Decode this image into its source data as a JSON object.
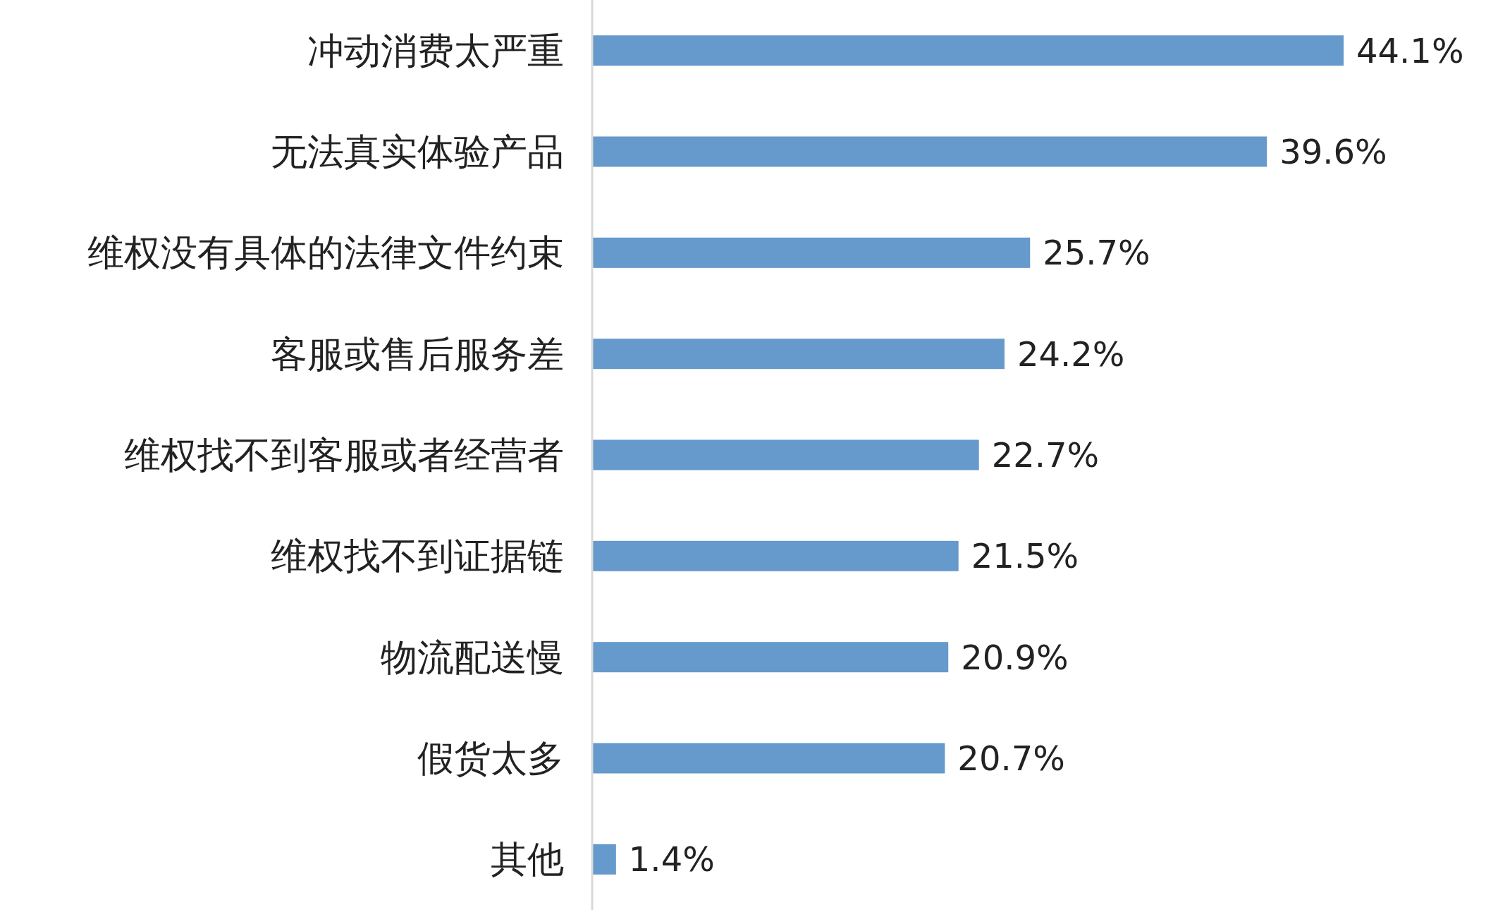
{
  "chart_data": {
    "type": "bar",
    "orientation": "horizontal",
    "categories": [
      "冲动消费太严重",
      "无法真实体验产品",
      "维权没有具体的法律文件约束",
      "客服或售后服务差",
      "维权找不到客服或者经营者",
      "维权找不到证据链",
      "物流配送慢",
      "假货太多",
      "其他"
    ],
    "values": [
      44.1,
      39.6,
      25.7,
      24.2,
      22.7,
      21.5,
      20.9,
      20.7,
      1.4
    ],
    "color": "#6699cc",
    "value_labels": [
      "44.1%",
      "39.6%",
      "25.7%",
      "24.2%",
      "22.7%",
      "21.5%",
      "20.9%",
      "20.7%",
      "1.4%"
    ]
  }
}
